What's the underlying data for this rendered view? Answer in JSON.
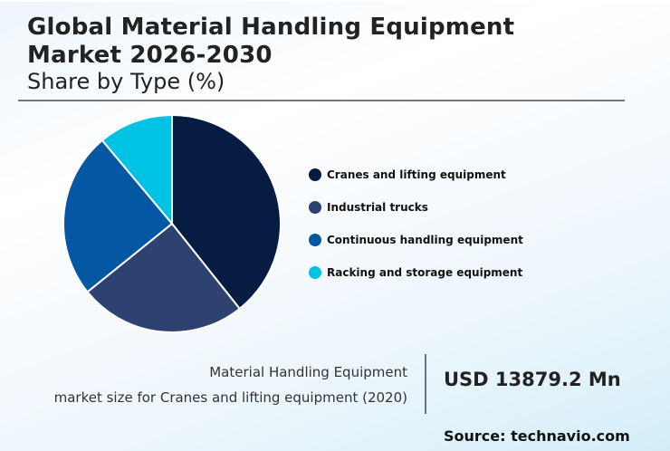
{
  "header": {
    "title_line1": "Global Material Handling Equipment",
    "title_line2": "Market 2026-2030",
    "subtitle": "Share by Type (%)"
  },
  "chart_data": {
    "type": "pie",
    "title": "Global Material Handling Equipment Market 2026-2030",
    "subtitle": "Share by Type (%)",
    "categories": [
      "Cranes and lifting equipment",
      "Industrial trucks",
      "Continuous handling equipment",
      "Racking and storage equipment"
    ],
    "values": [
      39.3,
      24.9,
      24.7,
      11.1
    ],
    "colors": [
      "#071c42",
      "#2e4272",
      "#0457a3",
      "#00c2e2"
    ],
    "start_angle": "12 o'clock",
    "direction": "clockwise",
    "legend_position": "right"
  },
  "legend": {
    "items": [
      {
        "label": "Cranes and lifting equipment",
        "color": "#071c42"
      },
      {
        "label": "Industrial trucks",
        "color": "#2e4272"
      },
      {
        "label": "Continuous handling equipment",
        "color": "#0457a3"
      },
      {
        "label": "Racking and storage equipment",
        "color": "#00c2e2"
      }
    ]
  },
  "footer": {
    "market_label_line1": "Material Handling Equipment",
    "market_label_line2": "market size for Cranes and lifting equipment (2020)",
    "market_value": "USD 13879.2 Mn",
    "source": "Source: technavio.com"
  }
}
